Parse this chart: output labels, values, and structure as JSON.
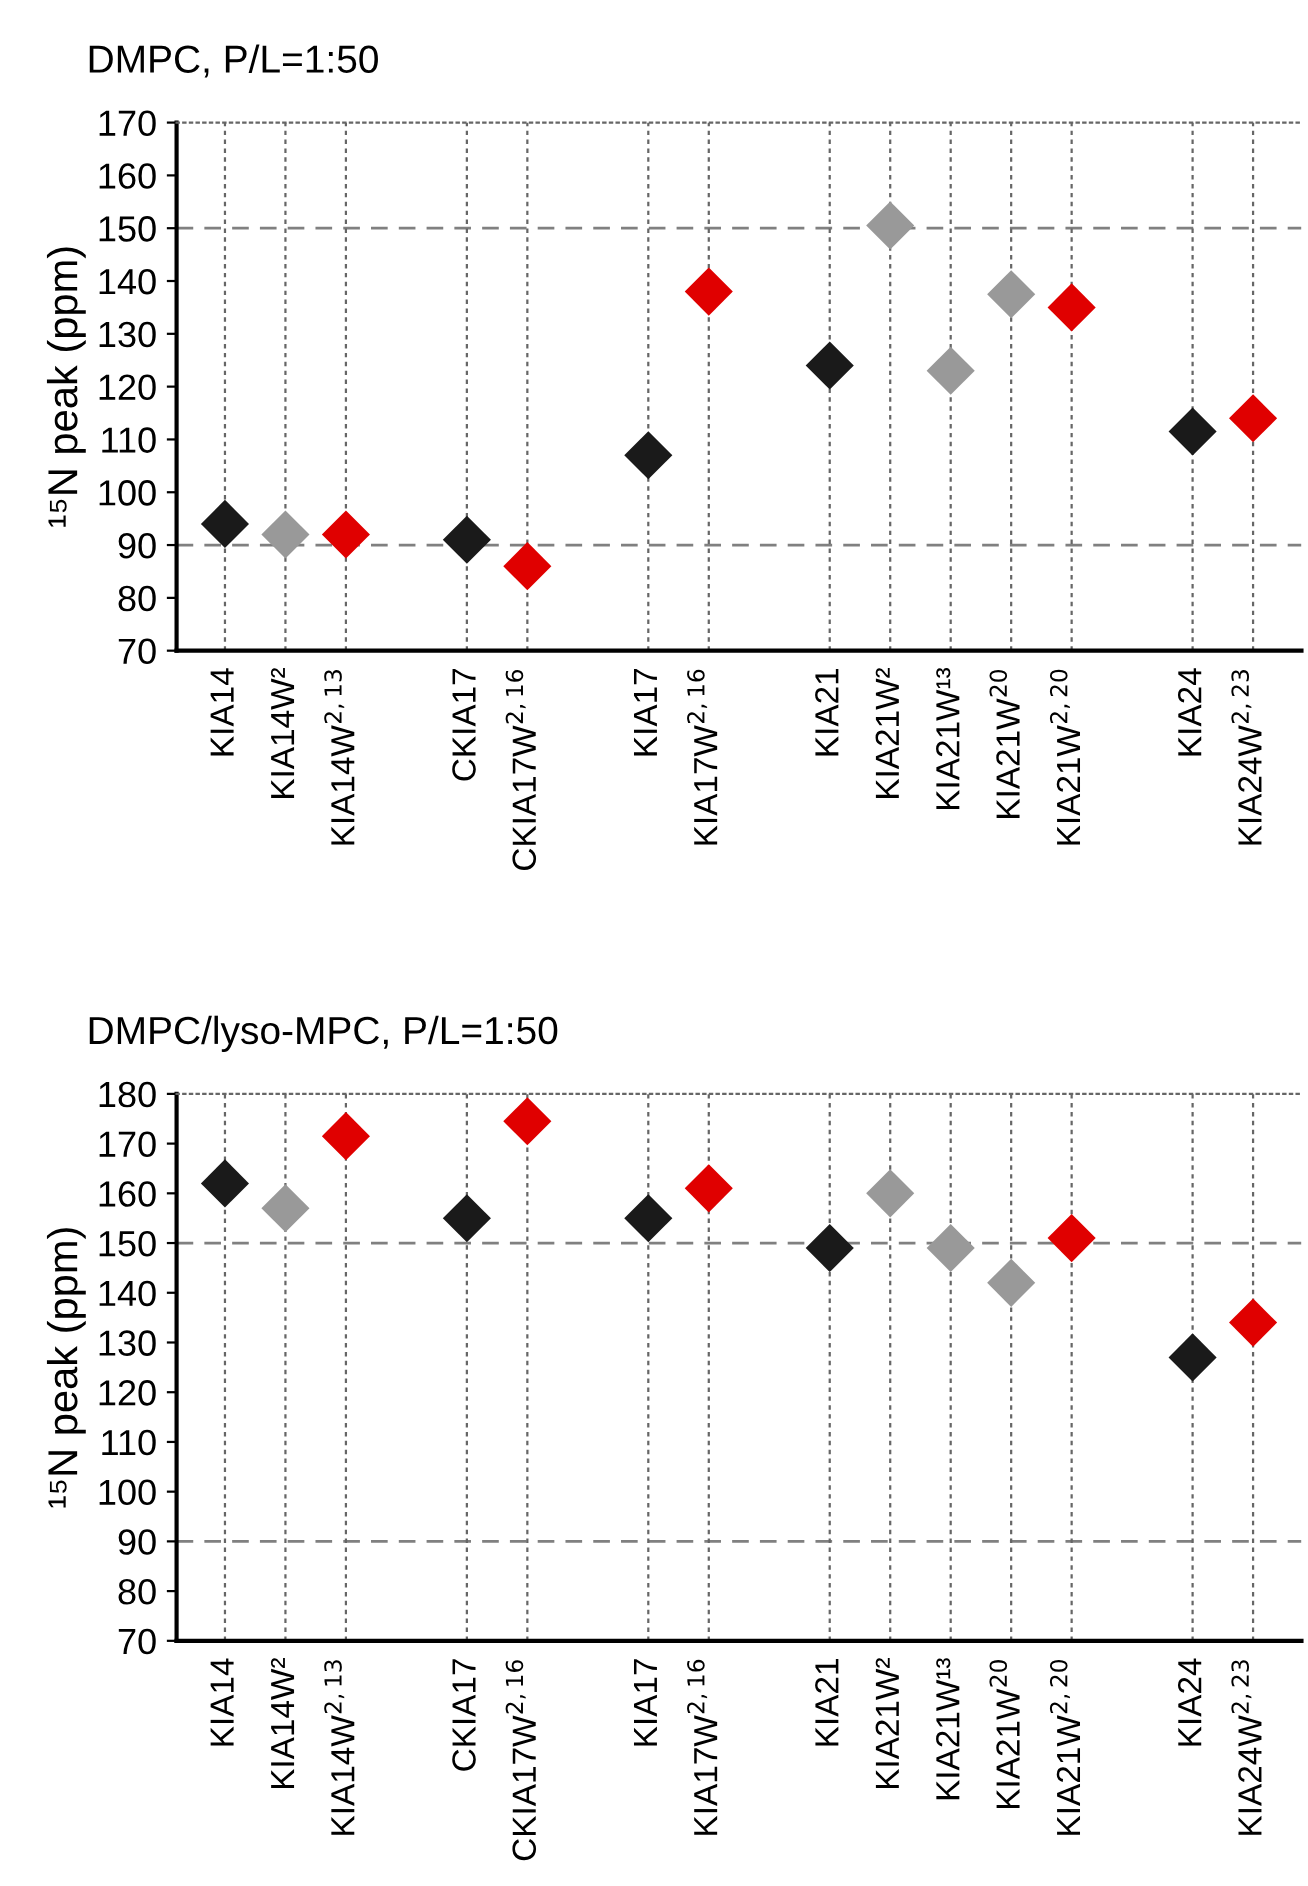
{
  "chart_data": [
    {
      "type": "scatter",
      "title": "DMPC, P/L=1:50",
      "ylabel": "¹⁵N peak (ppm)",
      "categories": [
        "KIA14",
        "KIA14W²",
        "KIA14W$^{2,13}$",
        null,
        "CKIA17",
        "CKIA17W$^{2,16}$",
        null,
        "KIA17",
        "KIA17W$^{2,16}$",
        null,
        "KIA21",
        "KIA21W²",
        "KIA21W¹³",
        "KIA21W$^{20}$",
        "KIA21W$^{2,20}$",
        null,
        "KIA24",
        "KIA24W$^{2,23}$"
      ],
      "series": [
        {
          "values": [
            94,
            92,
            92,
            null,
            91,
            86,
            null,
            107,
            138,
            null,
            124,
            150.5,
            123,
            137.5,
            135,
            null,
            111.5,
            114
          ],
          "colors": [
            "#1a1a1a",
            "#999999",
            "#e00000",
            null,
            "#1a1a1a",
            "#e00000",
            null,
            "#1a1a1a",
            "#e00000",
            null,
            "#1a1a1a",
            "#999999",
            "#999999",
            "#999999",
            "#e00000",
            null,
            "#1a1a1a",
            "#e00000"
          ]
        }
      ],
      "ylim": [
        70,
        170
      ],
      "yticks": [
        70,
        80,
        90,
        100,
        110,
        120,
        130,
        140,
        150,
        160,
        170
      ],
      "grid": "x",
      "marker": "diamond",
      "legend": false,
      "ref_lines": [
        {
          "axis": "y",
          "value": 90,
          "color": "#808080",
          "line_style": "dashed"
        },
        {
          "axis": "y",
          "value": 150,
          "color": "#808080",
          "line_style": "dashed"
        }
      ]
    },
    {
      "type": "scatter",
      "title": "DMPC/lyso-MPC, P/L=1:50",
      "ylabel": "¹⁵N peak (ppm)",
      "categories": [
        "KIA14",
        "KIA14W²",
        "KIA14W$^{2,13}$",
        null,
        "CKIA17",
        "CKIA17W$^{2,16}$",
        null,
        "KIA17",
        "KIA17W$^{2,16}$",
        null,
        "KIA21",
        "KIA21W²",
        "KIA21W¹³",
        "KIA21W$^{20}$",
        "KIA21W$^{2,20}$",
        null,
        "KIA24",
        "KIA24W$^{2,23}$"
      ],
      "series": [
        {
          "values": [
            162,
            157,
            171.5,
            null,
            155,
            174.5,
            null,
            155,
            161,
            null,
            149,
            160,
            149,
            142,
            151,
            null,
            127,
            134
          ],
          "colors": [
            "#1a1a1a",
            "#999999",
            "#e00000",
            null,
            "#1a1a1a",
            "#e00000",
            null,
            "#1a1a1a",
            "#e00000",
            null,
            "#1a1a1a",
            "#999999",
            "#999999",
            "#999999",
            "#e00000",
            null,
            "#1a1a1a",
            "#e00000"
          ]
        }
      ],
      "ylim": [
        70,
        180
      ],
      "yticks": [
        70,
        80,
        90,
        100,
        110,
        120,
        130,
        140,
        150,
        160,
        170,
        180
      ],
      "grid": "x",
      "marker": "diamond",
      "legend": false,
      "ref_lines": [
        {
          "axis": "y",
          "value": 90,
          "color": "#808080",
          "line_style": "dashed"
        },
        {
          "axis": "y",
          "value": 150,
          "color": "#808080",
          "line_style": "dashed"
        }
      ]
    }
  ]
}
